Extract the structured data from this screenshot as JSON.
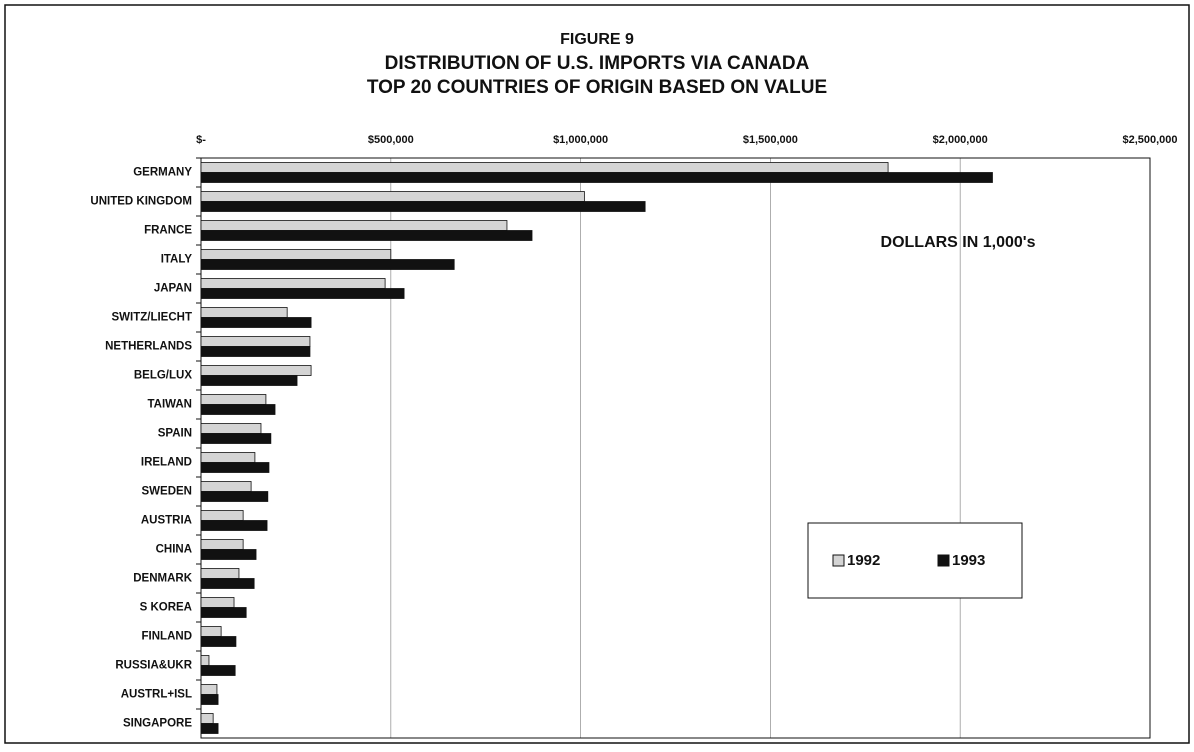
{
  "chart_data": {
    "type": "hbar",
    "title": [
      "FIGURE 9",
      "DISTRIBUTION OF U.S. IMPORTS VIA CANADA",
      "TOP 20  COUNTRIES OF ORIGIN  BASED ON VALUE"
    ],
    "annotation": "DOLLARS IN 1,000's",
    "categories": [
      "GERMANY",
      "UNITED KINGDOM",
      "FRANCE",
      "ITALY",
      "JAPAN",
      "SWITZ/LIECHT",
      "NETHERLANDS",
      "BELG/LUX",
      "TAIWAN",
      "SPAIN",
      "IRELAND",
      "SWEDEN",
      "AUSTRIA",
      "CHINA",
      "DENMARK",
      "S KOREA",
      "FINLAND",
      "RUSSIA&UKR",
      "AUSTRL+ISL",
      "SINGAPORE"
    ],
    "series": [
      {
        "name": "1992",
        "color": "#d4d4d4",
        "values": [
          1810000,
          1010000,
          806000,
          500000,
          485000,
          227000,
          287000,
          290000,
          171000,
          158000,
          142000,
          132000,
          111000,
          111000,
          100000,
          87000,
          53000,
          21000,
          42000,
          32000
        ]
      },
      {
        "name": "1993",
        "color": "#111111",
        "values": [
          2085000,
          1170000,
          872000,
          667000,
          535000,
          290000,
          287000,
          253000,
          195000,
          184000,
          179000,
          176000,
          174000,
          145000,
          140000,
          119000,
          92000,
          90000,
          45000,
          45000
        ]
      }
    ],
    "xlim": [
      0,
      2500000
    ],
    "xticks": [
      {
        "value": 0,
        "label": "$-"
      },
      {
        "value": 500000,
        "label": "$500,000"
      },
      {
        "value": 1000000,
        "label": "$1,000,000"
      },
      {
        "value": 1500000,
        "label": "$1,500,000"
      },
      {
        "value": 2000000,
        "label": "$2,000,000"
      },
      {
        "value": 2500000,
        "label": "$2,500,000"
      }
    ],
    "grid": true,
    "legend": "right"
  }
}
